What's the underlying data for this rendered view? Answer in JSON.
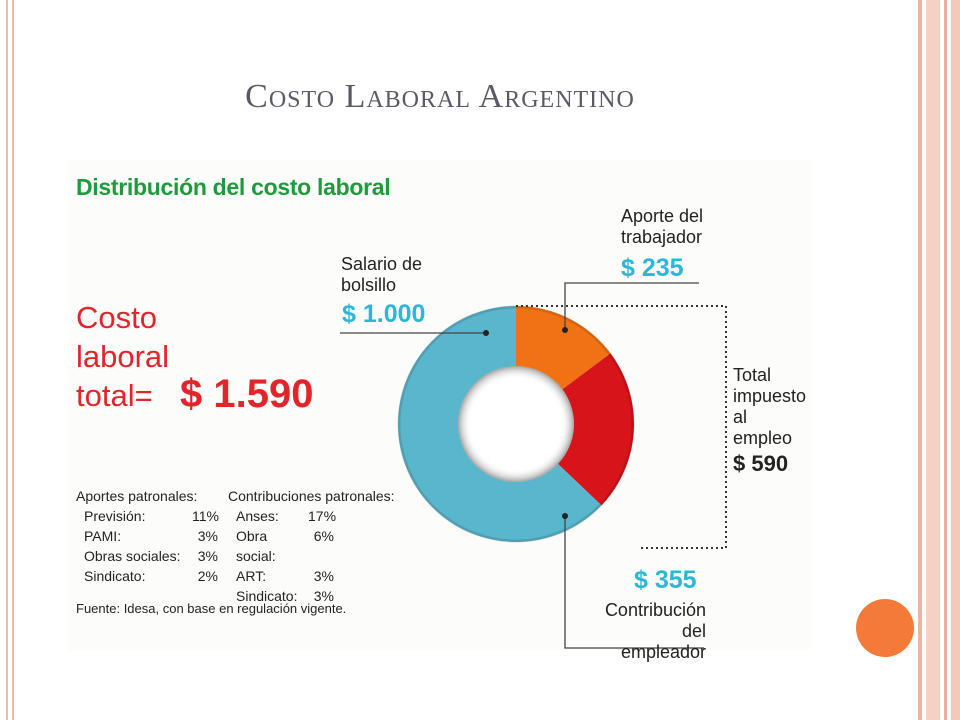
{
  "slide": {
    "title": "Costo Laboral Argentino"
  },
  "colors": {
    "title_green": "#1e9b3c",
    "accent_red": "#e0262b",
    "value_cyan": "#2cb7d8",
    "segment_salario": "#5ab6cc",
    "segment_aporte": "#f07215",
    "segment_contribucion": "#d8141b",
    "decor_dot": "#f47a3a"
  },
  "infographic": {
    "title": "Distribución del costo laboral",
    "costo_label_lines": [
      "Costo",
      "laboral",
      "total="
    ],
    "costo_total": "$ 1.590",
    "salario_label_lines": [
      "Salario de",
      "bolsillo"
    ],
    "salario_value": "$ 1.000",
    "aporte_label_lines": [
      "Aporte del",
      "trabajador"
    ],
    "aporte_value": "$ 235",
    "total_impuesto_lines": [
      "Total",
      "impuesto",
      "al empleo"
    ],
    "total_impuesto_value": "$ 590",
    "contribucion_value": "$ 355",
    "contribucion_label_lines": [
      "Contribución",
      "del empleador"
    ],
    "aportes_patronales": {
      "heading": "Aportes patronales:",
      "items": [
        {
          "name": "Previsión:",
          "pct": "11%"
        },
        {
          "name": "PAMI:",
          "pct": "3%"
        },
        {
          "name": "Obras sociales:",
          "pct": "3%"
        },
        {
          "name": "Sindicato:",
          "pct": "2%"
        }
      ]
    },
    "contribuciones_patronales": {
      "heading": "Contribuciones patronales:",
      "items": [
        {
          "name": "Anses:",
          "pct": "17%"
        },
        {
          "name": "Obra social:",
          "pct": "6%"
        },
        {
          "name": "ART:",
          "pct": "3%"
        },
        {
          "name": "Sindicato:",
          "pct": "3%"
        }
      ]
    },
    "source": "Fuente: Idesa, con base en regulación vigente."
  },
  "chart_data": {
    "type": "pie",
    "donut": true,
    "categories": [
      "Aporte del trabajador",
      "Contribución del empleador",
      "Salario de bolsillo"
    ],
    "values": [
      235,
      355,
      1000
    ],
    "total": 1590,
    "colors": [
      "#f07215",
      "#d8141b",
      "#5ab6cc"
    ],
    "start_angle_deg": 0,
    "direction": "clockwise"
  }
}
